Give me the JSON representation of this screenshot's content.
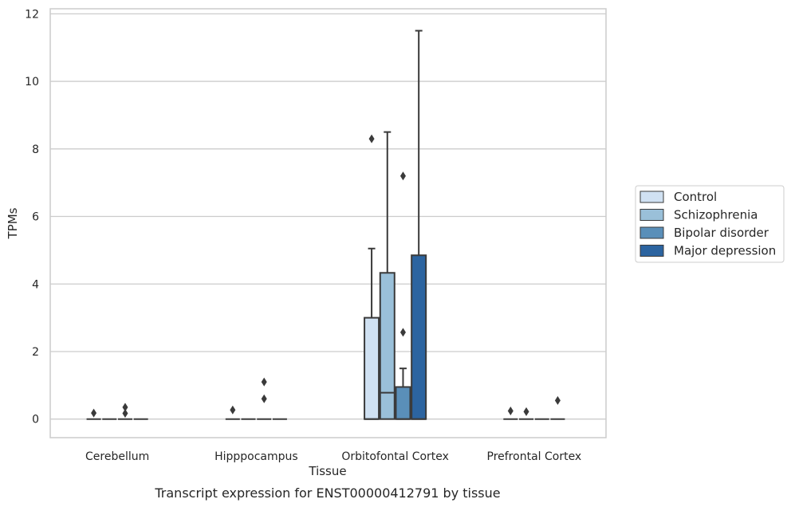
{
  "chart_data": {
    "type": "box",
    "xlabel": "Tissue",
    "ylabel": "TPMs",
    "caption": "Transcript expression for ENST00000412791 by tissue",
    "ylim": [
      -0.55,
      12.15
    ],
    "yticks": [
      0,
      2,
      4,
      6,
      8,
      10,
      12
    ],
    "grid": "horizontal",
    "legend_position": "right",
    "categories": [
      "Cerebellum",
      "Hipppocampus",
      "Orbitofontal Cortex",
      "Prefrontal Cortex"
    ],
    "series": [
      {
        "name": "Control",
        "color": "#d0e1f2",
        "boxes": [
          {
            "q1": 0,
            "median": 0,
            "q3": 0,
            "whisker_low": 0,
            "whisker_high": 0,
            "outliers": [
              0.18
            ]
          },
          {
            "q1": 0,
            "median": 0,
            "q3": 0,
            "whisker_low": 0,
            "whisker_high": 0,
            "outliers": [
              0.27
            ]
          },
          {
            "q1": 0,
            "median": 0,
            "q3": 3.0,
            "whisker_low": 0,
            "whisker_high": 5.05,
            "outliers": [
              8.3
            ]
          },
          {
            "q1": 0,
            "median": 0,
            "q3": 0,
            "whisker_low": 0,
            "whisker_high": 0,
            "outliers": [
              0.24
            ]
          }
        ]
      },
      {
        "name": "Schizophrenia",
        "color": "#9ac0d9",
        "boxes": [
          {
            "q1": 0,
            "median": 0,
            "q3": 0,
            "whisker_low": 0,
            "whisker_high": 0,
            "outliers": []
          },
          {
            "q1": 0,
            "median": 0,
            "q3": 0,
            "whisker_low": 0,
            "whisker_high": 0,
            "outliers": []
          },
          {
            "q1": 0,
            "median": 0.78,
            "q3": 4.33,
            "whisker_low": 0,
            "whisker_high": 8.5,
            "outliers": []
          },
          {
            "q1": 0,
            "median": 0,
            "q3": 0,
            "whisker_low": 0,
            "whisker_high": 0,
            "outliers": [
              0.22
            ]
          }
        ]
      },
      {
        "name": "Bipolar disorder",
        "color": "#5a8fb9",
        "boxes": [
          {
            "q1": 0,
            "median": 0,
            "q3": 0,
            "whisker_low": 0,
            "whisker_high": 0,
            "outliers": [
              0.35,
              0.17
            ]
          },
          {
            "q1": 0,
            "median": 0,
            "q3": 0,
            "whisker_low": 0,
            "whisker_high": 0,
            "outliers": [
              1.1,
              0.6
            ]
          },
          {
            "q1": 0,
            "median": 0,
            "q3": 0.95,
            "whisker_low": 0,
            "whisker_high": 1.5,
            "outliers": [
              7.2,
              2.57
            ]
          },
          {
            "q1": 0,
            "median": 0,
            "q3": 0,
            "whisker_low": 0,
            "whisker_high": 0,
            "outliers": []
          }
        ]
      },
      {
        "name": "Major depression",
        "color": "#2c64a0",
        "boxes": [
          {
            "q1": 0,
            "median": 0,
            "q3": 0,
            "whisker_low": 0,
            "whisker_high": 0,
            "outliers": []
          },
          {
            "q1": 0,
            "median": 0,
            "q3": 0,
            "whisker_low": 0,
            "whisker_high": 0,
            "outliers": []
          },
          {
            "q1": 0,
            "median": 0,
            "q3": 4.85,
            "whisker_low": 0,
            "whisker_high": 11.5,
            "outliers": []
          },
          {
            "q1": 0,
            "median": 0,
            "q3": 0,
            "whisker_low": 0,
            "whisker_high": 0,
            "outliers": [
              0.55
            ]
          }
        ]
      }
    ]
  }
}
